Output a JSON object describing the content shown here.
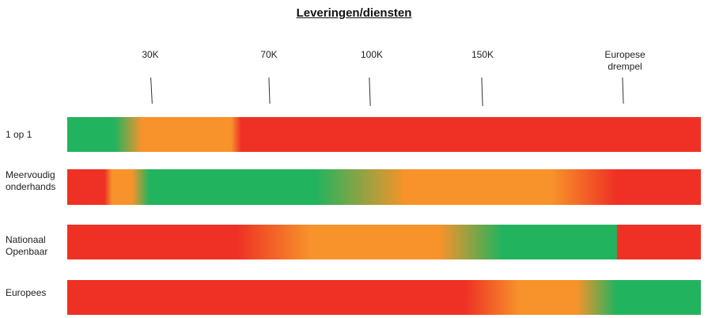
{
  "chart_data": {
    "type": "heatmap",
    "title": "Leveringen/diensten",
    "thresholds": [
      {
        "label": "30K",
        "value": 30000
      },
      {
        "label": "70K",
        "value": 70000
      },
      {
        "label": "100K",
        "value": 100000
      },
      {
        "label": "150K",
        "value": 150000
      },
      {
        "label_lines": [
          "Europese",
          "drempel"
        ],
        "value": 221000
      }
    ],
    "colors": {
      "green": "#22b35e",
      "orange": "#f7932a",
      "red": "#ee3124"
    },
    "series": [
      {
        "name_lines": [
          "1 op 1"
        ],
        "stops": [
          {
            "value": 0,
            "color": "green"
          },
          {
            "value": 19000,
            "color": "green"
          },
          {
            "value": 30000,
            "color": "orange"
          },
          {
            "value": 66000,
            "color": "orange"
          },
          {
            "value": 70000,
            "color": "red"
          },
          {
            "value": 255000,
            "color": "red"
          }
        ]
      },
      {
        "name_lines": [
          "Meervoudig",
          "onderhands"
        ],
        "stops": [
          {
            "value": 0,
            "color": "red"
          },
          {
            "value": 15000,
            "color": "red"
          },
          {
            "value": 18000,
            "color": "orange"
          },
          {
            "value": 26000,
            "color": "orange"
          },
          {
            "value": 33000,
            "color": "green"
          },
          {
            "value": 100000,
            "color": "green"
          },
          {
            "value": 136000,
            "color": "orange"
          },
          {
            "value": 195000,
            "color": "orange"
          },
          {
            "value": 221000,
            "color": "red"
          },
          {
            "value": 255000,
            "color": "red"
          }
        ]
      },
      {
        "name_lines": [
          "Nationaal",
          "Openbaar"
        ],
        "stops": [
          {
            "value": 0,
            "color": "red"
          },
          {
            "value": 68000,
            "color": "red"
          },
          {
            "value": 98000,
            "color": "orange"
          },
          {
            "value": 150000,
            "color": "orange"
          },
          {
            "value": 175000,
            "color": "green"
          },
          {
            "value": 221000,
            "color": "green"
          },
          {
            "value": 221500,
            "color": "red"
          },
          {
            "value": 255000,
            "color": "red"
          }
        ]
      },
      {
        "name_lines": [
          "Europees"
        ],
        "stops": [
          {
            "value": 0,
            "color": "red"
          },
          {
            "value": 160000,
            "color": "red"
          },
          {
            "value": 182000,
            "color": "orange"
          },
          {
            "value": 205000,
            "color": "orange"
          },
          {
            "value": 221000,
            "color": "green"
          },
          {
            "value": 255000,
            "color": "green"
          }
        ]
      }
    ],
    "xlim": [
      0,
      255000
    ],
    "xlabel": "",
    "ylabel": ""
  }
}
